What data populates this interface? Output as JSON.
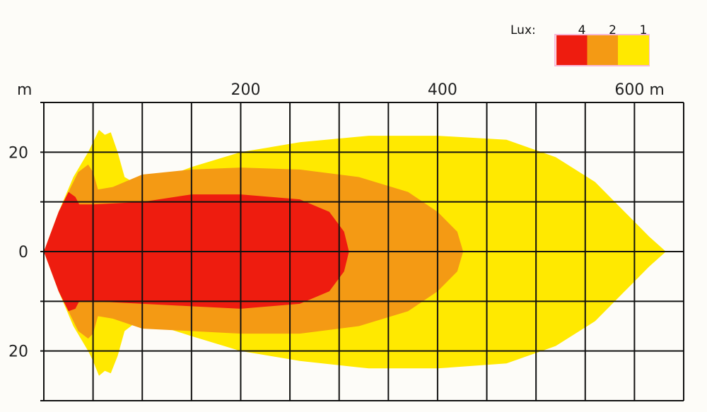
{
  "chart_data": {
    "type": "area",
    "x_unit": "m",
    "y_unit": "m",
    "xlim": [
      0,
      650
    ],
    "ylim": [
      -30,
      30
    ],
    "grid": true,
    "x_grid_step": 50,
    "y_grid_step": 10,
    "x_tick_labels": [
      {
        "value": 200,
        "label": "200"
      },
      {
        "value": 400,
        "label": "400"
      },
      {
        "value": 600,
        "label": "600 m"
      }
    ],
    "y_axis_unit_label": "m",
    "y_tick_labels": [
      {
        "value": 20,
        "label": "20"
      },
      {
        "value": 0,
        "label": "0"
      },
      {
        "value": -20,
        "label": "20"
      }
    ],
    "legend": {
      "title": "Lux:",
      "placement": "top-right",
      "entries": [
        {
          "label": "4",
          "color": "#ee1c0f"
        },
        {
          "label": "2",
          "color": "#f49a14"
        },
        {
          "label": "1",
          "color": "#ffe900"
        }
      ]
    },
    "series": [
      {
        "lux": 1,
        "color": "#ffe900",
        "contour": [
          [
            0,
            0
          ],
          [
            15,
            8
          ],
          [
            30,
            15
          ],
          [
            45,
            20
          ],
          [
            50,
            22
          ],
          [
            56,
            24.5
          ],
          [
            62,
            23.5
          ],
          [
            68,
            24
          ],
          [
            75,
            20
          ],
          [
            82,
            15
          ],
          [
            95,
            13.5
          ],
          [
            110,
            14
          ],
          [
            150,
            17
          ],
          [
            200,
            20
          ],
          [
            260,
            22
          ],
          [
            330,
            23.3
          ],
          [
            400,
            23.3
          ],
          [
            470,
            22.5
          ],
          [
            520,
            19
          ],
          [
            560,
            14
          ],
          [
            590,
            8
          ],
          [
            615,
            3
          ],
          [
            632,
            0
          ],
          [
            615,
            -3
          ],
          [
            590,
            -8
          ],
          [
            560,
            -14
          ],
          [
            520,
            -19
          ],
          [
            470,
            -22.5
          ],
          [
            400,
            -23.5
          ],
          [
            330,
            -23.5
          ],
          [
            260,
            -22
          ],
          [
            200,
            -20
          ],
          [
            150,
            -17
          ],
          [
            110,
            -14.5
          ],
          [
            95,
            -14
          ],
          [
            82,
            -16
          ],
          [
            75,
            -21
          ],
          [
            68,
            -24.5
          ],
          [
            62,
            -24
          ],
          [
            56,
            -25
          ],
          [
            50,
            -22
          ],
          [
            45,
            -20
          ],
          [
            30,
            -15
          ],
          [
            15,
            -8
          ]
        ]
      },
      {
        "lux": 2,
        "color": "#f49a14",
        "contour": [
          [
            0,
            0
          ],
          [
            20,
            10
          ],
          [
            35,
            16
          ],
          [
            45,
            17.5
          ],
          [
            50,
            16
          ],
          [
            55,
            12.5
          ],
          [
            70,
            13
          ],
          [
            100,
            15.5
          ],
          [
            150,
            16.5
          ],
          [
            200,
            16.9
          ],
          [
            260,
            16.5
          ],
          [
            320,
            15
          ],
          [
            370,
            12
          ],
          [
            400,
            8
          ],
          [
            420,
            4
          ],
          [
            426,
            0
          ],
          [
            420,
            -4
          ],
          [
            400,
            -8
          ],
          [
            370,
            -12
          ],
          [
            320,
            -15
          ],
          [
            260,
            -16.5
          ],
          [
            200,
            -16.5
          ],
          [
            150,
            -16
          ],
          [
            100,
            -15.5
          ],
          [
            70,
            -13.5
          ],
          [
            55,
            -13
          ],
          [
            50,
            -16.5
          ],
          [
            45,
            -17.5
          ],
          [
            35,
            -16
          ],
          [
            20,
            -10
          ]
        ]
      },
      {
        "lux": 4,
        "color": "#ee1c0f",
        "contour": [
          [
            0,
            0
          ],
          [
            15,
            8
          ],
          [
            25,
            12
          ],
          [
            32,
            11
          ],
          [
            36,
            9.5
          ],
          [
            50,
            9.5
          ],
          [
            100,
            10
          ],
          [
            150,
            11.5
          ],
          [
            200,
            11.5
          ],
          [
            260,
            10.5
          ],
          [
            290,
            8
          ],
          [
            305,
            4
          ],
          [
            310,
            0
          ],
          [
            305,
            -4
          ],
          [
            290,
            -8
          ],
          [
            260,
            -10.5
          ],
          [
            200,
            -11.5
          ],
          [
            150,
            -11
          ],
          [
            100,
            -10.5
          ],
          [
            50,
            -10
          ],
          [
            36,
            -10
          ],
          [
            32,
            -11.5
          ],
          [
            25,
            -12
          ],
          [
            15,
            -8
          ]
        ]
      }
    ]
  }
}
